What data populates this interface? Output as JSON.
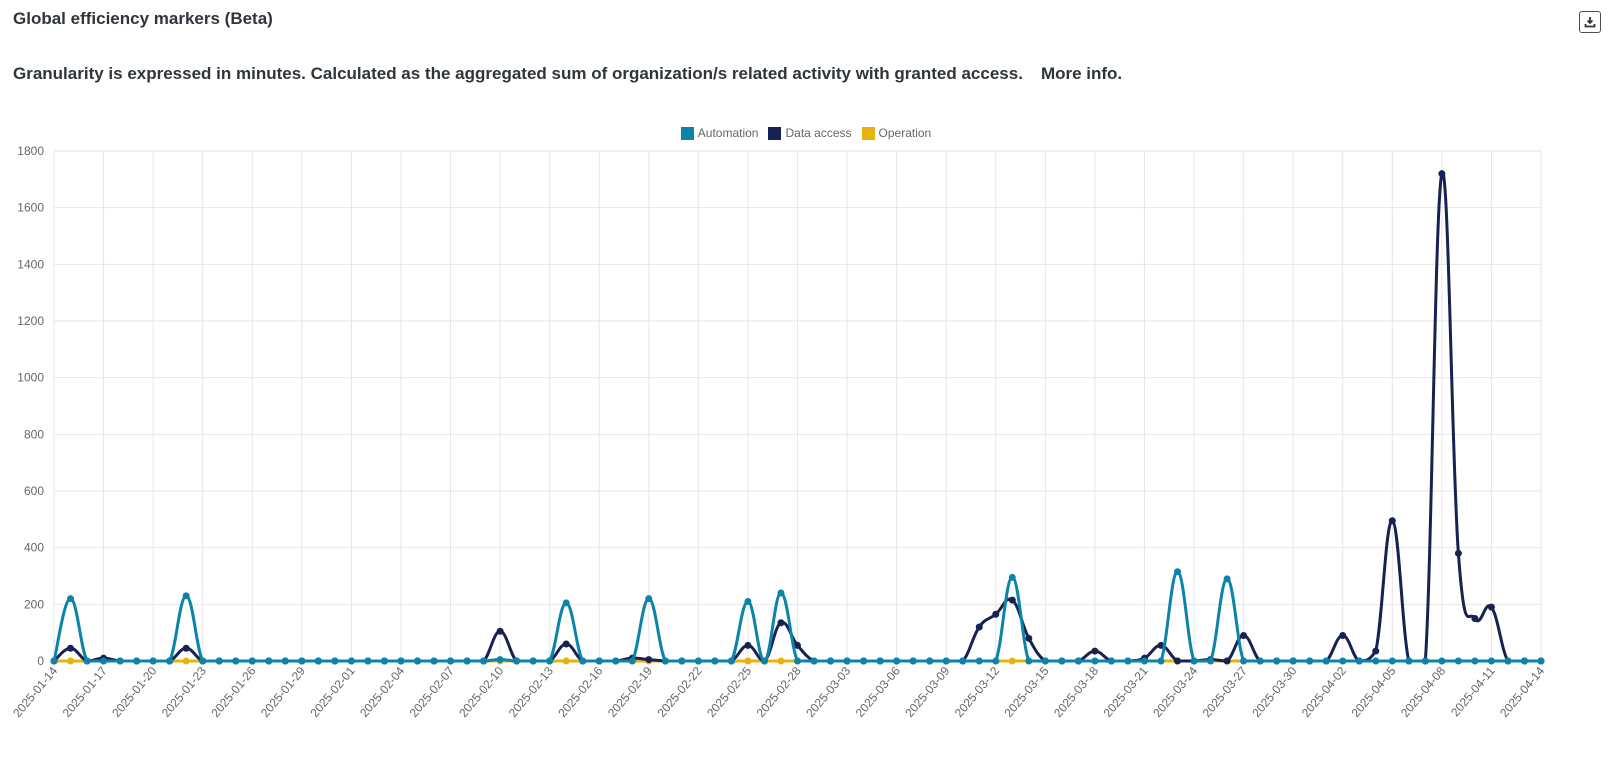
{
  "header": {
    "title": "Global efficiency markers (Beta)",
    "description": "Granularity is expressed in minutes. Calculated as the aggregated sum of organization/s related activity with granted access.",
    "more_info": "More info.",
    "download_icon": "download-icon"
  },
  "colors": {
    "automation": "#0c84a9",
    "data_access": "#172252",
    "operation": "#e8b20c"
  },
  "chart_data": {
    "type": "line",
    "title": "",
    "xlabel": "",
    "ylabel": "",
    "ylim": [
      0,
      1800
    ],
    "yticks": [
      0,
      200,
      400,
      600,
      800,
      1000,
      1200,
      1400,
      1600,
      1800
    ],
    "grid": true,
    "legend_position": "top-center",
    "x": [
      "2025-01-14",
      "2025-01-15",
      "2025-01-16",
      "2025-01-17",
      "2025-01-18",
      "2025-01-19",
      "2025-01-20",
      "2025-01-21",
      "2025-01-22",
      "2025-01-23",
      "2025-01-24",
      "2025-01-25",
      "2025-01-26",
      "2025-01-27",
      "2025-01-28",
      "2025-01-29",
      "2025-01-30",
      "2025-01-31",
      "2025-02-01",
      "2025-02-02",
      "2025-02-03",
      "2025-02-04",
      "2025-02-05",
      "2025-02-06",
      "2025-02-07",
      "2025-02-08",
      "2025-02-09",
      "2025-02-10",
      "2025-02-11",
      "2025-02-12",
      "2025-02-13",
      "2025-02-14",
      "2025-02-15",
      "2025-02-16",
      "2025-02-17",
      "2025-02-18",
      "2025-02-19",
      "2025-02-20",
      "2025-02-21",
      "2025-02-22",
      "2025-02-23",
      "2025-02-24",
      "2025-02-25",
      "2025-02-26",
      "2025-02-27",
      "2025-02-28",
      "2025-03-01",
      "2025-03-02",
      "2025-03-03",
      "2025-03-04",
      "2025-03-05",
      "2025-03-06",
      "2025-03-07",
      "2025-03-08",
      "2025-03-09",
      "2025-03-10",
      "2025-03-11",
      "2025-03-12",
      "2025-03-13",
      "2025-03-14",
      "2025-03-15",
      "2025-03-16",
      "2025-03-17",
      "2025-03-18",
      "2025-03-19",
      "2025-03-20",
      "2025-03-21",
      "2025-03-22",
      "2025-03-23",
      "2025-03-24",
      "2025-03-25",
      "2025-03-26",
      "2025-03-27",
      "2025-03-28",
      "2025-03-29",
      "2025-03-30",
      "2025-03-31",
      "2025-04-01",
      "2025-04-02",
      "2025-04-03",
      "2025-04-04",
      "2025-04-05",
      "2025-04-06",
      "2025-04-07",
      "2025-04-08",
      "2025-04-09",
      "2025-04-10",
      "2025-04-11",
      "2025-04-12",
      "2025-04-13",
      "2025-04-14"
    ],
    "xtick_labels": [
      "2025-01-14",
      "2025-01-17",
      "2025-01-20",
      "2025-01-23",
      "2025-01-26",
      "2025-01-29",
      "2025-02-01",
      "2025-02-04",
      "2025-02-07",
      "2025-02-10",
      "2025-02-13",
      "2025-02-16",
      "2025-02-19",
      "2025-02-22",
      "2025-02-25",
      "2025-02-28",
      "2025-03-03",
      "2025-03-06",
      "2025-03-09",
      "2025-03-12",
      "2025-03-15",
      "2025-03-18",
      "2025-03-21",
      "2025-03-24",
      "2025-03-27",
      "2025-03-30",
      "2025-04-02",
      "2025-04-05",
      "2025-04-08",
      "2025-04-11",
      "2025-04-14"
    ],
    "series": [
      {
        "name": "Automation",
        "color": "#0c84a9",
        "values": [
          0,
          220,
          0,
          0,
          0,
          0,
          0,
          0,
          230,
          0,
          0,
          0,
          0,
          0,
          0,
          0,
          0,
          0,
          0,
          0,
          0,
          0,
          0,
          0,
          0,
          0,
          0,
          5,
          0,
          0,
          0,
          205,
          0,
          0,
          0,
          0,
          220,
          0,
          0,
          0,
          0,
          0,
          210,
          0,
          240,
          0,
          0,
          0,
          0,
          0,
          0,
          0,
          0,
          0,
          0,
          0,
          0,
          0,
          295,
          0,
          0,
          0,
          0,
          0,
          0,
          0,
          0,
          0,
          315,
          0,
          0,
          290,
          0,
          0,
          0,
          0,
          0,
          0,
          0,
          0,
          0,
          0,
          0,
          0,
          0,
          0,
          0,
          0,
          0,
          0,
          0
        ]
      },
      {
        "name": "Data access",
        "color": "#172252",
        "values": [
          0,
          45,
          0,
          10,
          0,
          0,
          0,
          0,
          45,
          0,
          0,
          0,
          0,
          0,
          0,
          0,
          0,
          0,
          0,
          0,
          0,
          0,
          0,
          0,
          0,
          0,
          0,
          105,
          0,
          0,
          0,
          60,
          0,
          0,
          0,
          10,
          5,
          0,
          0,
          0,
          0,
          0,
          55,
          0,
          135,
          55,
          0,
          0,
          0,
          0,
          0,
          0,
          0,
          0,
          0,
          0,
          120,
          165,
          215,
          80,
          0,
          0,
          0,
          35,
          0,
          0,
          10,
          55,
          0,
          0,
          5,
          0,
          90,
          0,
          0,
          0,
          0,
          0,
          90,
          0,
          35,
          495,
          0,
          0,
          1720,
          380,
          150,
          190,
          0,
          0,
          0
        ]
      },
      {
        "name": "Operation",
        "color": "#e8b20c",
        "values": [
          0,
          0,
          0,
          0,
          0,
          0,
          0,
          0,
          0,
          0,
          0,
          0,
          0,
          0,
          0,
          0,
          0,
          0,
          0,
          0,
          0,
          0,
          0,
          0,
          0,
          0,
          0,
          0,
          0,
          0,
          0,
          0,
          0,
          0,
          0,
          0,
          0,
          0,
          0,
          0,
          0,
          0,
          0,
          0,
          0,
          0,
          0,
          0,
          0,
          0,
          0,
          0,
          0,
          0,
          0,
          0,
          0,
          0,
          0,
          0,
          0,
          0,
          0,
          0,
          0,
          0,
          0,
          0,
          0,
          0,
          0,
          0,
          0,
          0,
          0,
          0,
          0,
          0,
          0,
          0,
          0,
          0,
          0,
          0,
          0,
          0,
          0,
          0,
          0,
          0,
          0
        ]
      }
    ]
  }
}
